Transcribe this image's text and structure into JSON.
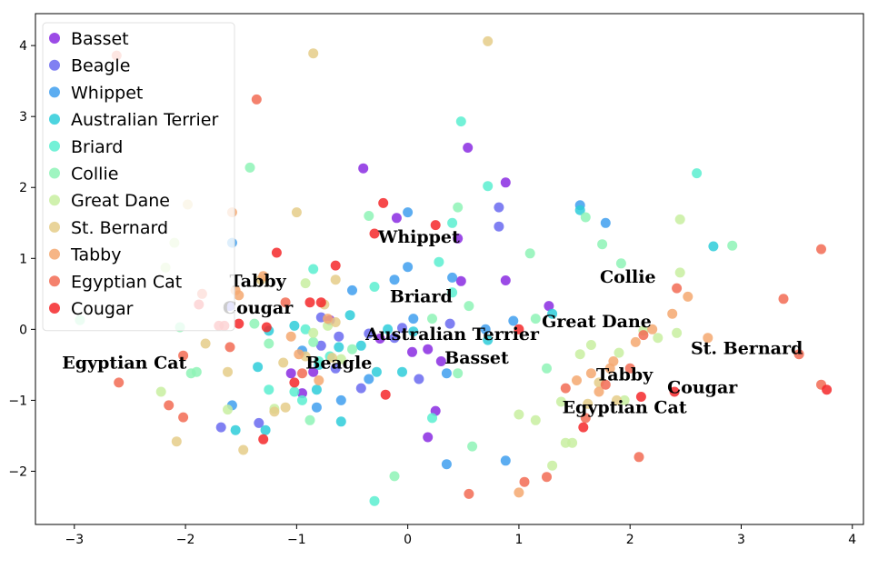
{
  "chart_data": {
    "type": "scatter",
    "title": "",
    "xlabel": "",
    "ylabel": "",
    "xlim": [
      -3.35,
      4.1
    ],
    "ylim": [
      -2.75,
      4.45
    ],
    "x_ticks": [
      -3,
      -2,
      -1,
      0,
      1,
      2,
      3,
      4
    ],
    "y_ticks": [
      -2,
      -1,
      0,
      1,
      2,
      3,
      4
    ],
    "x_tick_labels": [
      "−3",
      "−2",
      "−1",
      "0",
      "1",
      "2",
      "3",
      "4"
    ],
    "y_tick_labels": [
      "−2",
      "−1",
      "0",
      "1",
      "2",
      "3",
      "4"
    ],
    "grid": false,
    "legend_position": "top-left",
    "series": [
      {
        "name": "Basset",
        "color": "#8a2be2",
        "points": [
          [
            -0.4,
            2.27
          ],
          [
            0.54,
            2.56
          ],
          [
            0.88,
            2.07
          ],
          [
            -0.1,
            1.57
          ],
          [
            0.45,
            1.28
          ],
          [
            0.48,
            0.68
          ],
          [
            0.88,
            0.69
          ],
          [
            1.27,
            0.33
          ],
          [
            -0.7,
            0.13
          ],
          [
            -0.25,
            -0.13
          ],
          [
            0.04,
            -0.32
          ],
          [
            0.18,
            -0.28
          ],
          [
            0.3,
            -0.45
          ],
          [
            0.25,
            -1.15
          ],
          [
            0.18,
            -1.52
          ],
          [
            -0.95,
            -0.9
          ],
          [
            -0.85,
            -0.6
          ],
          [
            -1.05,
            -0.62
          ]
        ]
      },
      {
        "name": "Beagle",
        "color": "#6a6af0",
        "points": [
          [
            -0.78,
            -0.23
          ],
          [
            -0.62,
            -0.1
          ],
          [
            -0.35,
            -0.06
          ],
          [
            -0.12,
            -0.12
          ],
          [
            0.1,
            -0.7
          ],
          [
            -0.65,
            -0.55
          ],
          [
            -0.42,
            -0.83
          ],
          [
            -1.6,
            0.33
          ],
          [
            -1.68,
            -1.38
          ],
          [
            -1.34,
            -1.32
          ],
          [
            0.82,
            1.45
          ],
          [
            0.82,
            1.72
          ],
          [
            0.38,
            0.08
          ],
          [
            -0.05,
            0.02
          ],
          [
            -0.78,
            0.17
          ]
        ]
      },
      {
        "name": "Whippet",
        "color": "#3f9fee",
        "points": [
          [
            -0.5,
            0.55
          ],
          [
            -0.12,
            0.7
          ],
          [
            0.0,
            0.88
          ],
          [
            0.0,
            1.65
          ],
          [
            0.4,
            0.73
          ],
          [
            1.55,
            1.75
          ],
          [
            1.78,
            1.5
          ],
          [
            -1.58,
            1.22
          ],
          [
            -1.58,
            -1.07
          ],
          [
            -0.82,
            -1.1
          ],
          [
            -0.6,
            -1.0
          ],
          [
            -0.35,
            -0.7
          ],
          [
            0.35,
            -0.62
          ],
          [
            0.35,
            -1.9
          ],
          [
            0.88,
            -1.85
          ],
          [
            0.95,
            0.12
          ],
          [
            0.7,
            0.0
          ],
          [
            -0.95,
            -0.3
          ],
          [
            0.05,
            0.15
          ]
        ]
      },
      {
        "name": "Australian Terrier",
        "color": "#2ecdd9",
        "points": [
          [
            -1.55,
            -1.42
          ],
          [
            -1.35,
            -0.53
          ],
          [
            -1.25,
            -0.02
          ],
          [
            -1.02,
            0.05
          ],
          [
            -0.8,
            -0.5
          ],
          [
            -0.62,
            -0.25
          ],
          [
            -0.42,
            -0.23
          ],
          [
            -0.28,
            -0.6
          ],
          [
            -0.05,
            -0.6
          ],
          [
            0.05,
            -0.03
          ],
          [
            1.3,
            0.22
          ],
          [
            1.55,
            1.68
          ],
          [
            2.75,
            1.17
          ],
          [
            0.72,
            -0.15
          ],
          [
            -0.52,
            0.2
          ],
          [
            -0.18,
            0.0
          ],
          [
            -0.6,
            -1.3
          ],
          [
            -0.82,
            -0.85
          ],
          [
            -1.28,
            -1.42
          ]
        ]
      },
      {
        "name": "Briard",
        "color": "#5aefd0",
        "points": [
          [
            0.48,
            2.93
          ],
          [
            0.72,
            2.02
          ],
          [
            2.6,
            2.2
          ],
          [
            0.22,
            -1.25
          ],
          [
            0.4,
            0.52
          ],
          [
            0.4,
            1.5
          ],
          [
            0.28,
            0.95
          ],
          [
            -0.3,
            0.6
          ],
          [
            -0.8,
            -0.45
          ],
          [
            -0.7,
            -0.38
          ],
          [
            -0.95,
            -1.0
          ],
          [
            -1.02,
            -0.88
          ],
          [
            -0.92,
            0.0
          ],
          [
            -1.25,
            -0.85
          ],
          [
            -0.85,
            0.85
          ],
          [
            -0.3,
            -2.42
          ]
        ]
      },
      {
        "name": "Collie",
        "color": "#8ef3b6",
        "points": [
          [
            0.45,
            1.72
          ],
          [
            0.55,
            0.33
          ],
          [
            0.22,
            0.15
          ],
          [
            1.1,
            1.07
          ],
          [
            1.15,
            0.15
          ],
          [
            1.25,
            -0.55
          ],
          [
            1.6,
            1.58
          ],
          [
            1.75,
            1.2
          ],
          [
            1.92,
            0.93
          ],
          [
            2.92,
            1.18
          ],
          [
            -1.95,
            -0.62
          ],
          [
            -1.25,
            -0.2
          ],
          [
            -0.85,
            -0.18
          ],
          [
            -0.12,
            -2.07
          ],
          [
            0.58,
            -1.65
          ],
          [
            0.45,
            -0.62
          ],
          [
            -0.5,
            -0.28
          ],
          [
            -0.88,
            -1.28
          ],
          [
            -1.38,
            0.08
          ],
          [
            -2.05,
            0.03
          ],
          [
            -0.35,
            1.6
          ],
          [
            -1.42,
            2.28
          ],
          [
            -2.95,
            0.13
          ],
          [
            -1.9,
            -0.6
          ]
        ]
      },
      {
        "name": "Great Dane",
        "color": "#c8efa0",
        "points": [
          [
            -2.1,
            1.22
          ],
          [
            -2.18,
            0.87
          ],
          [
            -2.22,
            -0.88
          ],
          [
            -1.2,
            -1.12
          ],
          [
            -0.85,
            -0.05
          ],
          [
            1.0,
            -1.2
          ],
          [
            1.15,
            -1.28
          ],
          [
            1.38,
            -1.02
          ],
          [
            1.42,
            -1.6
          ],
          [
            1.55,
            -0.35
          ],
          [
            1.65,
            -0.22
          ],
          [
            1.9,
            -0.33
          ],
          [
            1.95,
            -1.0
          ],
          [
            2.12,
            -0.02
          ],
          [
            2.25,
            -0.12
          ],
          [
            2.42,
            -0.05
          ],
          [
            2.45,
            0.8
          ],
          [
            2.45,
            1.55
          ],
          [
            1.3,
            -1.92
          ],
          [
            1.48,
            -1.6
          ],
          [
            -1.62,
            -1.13
          ],
          [
            -0.92,
            0.65
          ],
          [
            -0.72,
            0.05
          ],
          [
            -0.6,
            -0.42
          ]
        ]
      },
      {
        "name": "St. Bernard",
        "color": "#e5cc88",
        "points": [
          [
            -0.85,
            3.89
          ],
          [
            0.72,
            4.06
          ],
          [
            -1.98,
            1.76
          ],
          [
            -1.0,
            1.65
          ],
          [
            -0.92,
            -0.38
          ],
          [
            -0.68,
            -0.4
          ],
          [
            -1.1,
            -1.1
          ],
          [
            -1.2,
            -1.16
          ],
          [
            -1.12,
            -0.47
          ],
          [
            -1.48,
            -1.7
          ],
          [
            -2.08,
            -1.58
          ],
          [
            -1.32,
            0.7
          ],
          [
            -0.65,
            0.7
          ],
          [
            -0.65,
            0.1
          ],
          [
            1.62,
            -1.05
          ],
          [
            1.72,
            -0.75
          ],
          [
            1.88,
            -1.0
          ],
          [
            -1.82,
            -0.2
          ],
          [
            -1.62,
            -0.6
          ],
          [
            -0.75,
            0.35
          ]
        ]
      },
      {
        "name": "Tabby",
        "color": "#f5a870",
        "points": [
          [
            -1.58,
            1.65
          ],
          [
            -1.55,
            0.55
          ],
          [
            -1.3,
            0.75
          ],
          [
            -1.05,
            -0.1
          ],
          [
            -0.8,
            -0.72
          ],
          [
            -0.72,
            0.15
          ],
          [
            1.0,
            -2.3
          ],
          [
            1.52,
            -0.72
          ],
          [
            1.65,
            -0.62
          ],
          [
            1.72,
            -0.88
          ],
          [
            1.85,
            -0.45
          ],
          [
            2.05,
            -0.18
          ],
          [
            2.2,
            0.0
          ],
          [
            2.38,
            0.22
          ],
          [
            2.52,
            0.46
          ],
          [
            2.7,
            -0.12
          ],
          [
            1.82,
            -0.55
          ],
          [
            -0.98,
            -0.35
          ],
          [
            -1.52,
            0.48
          ]
        ]
      },
      {
        "name": "Egyptian Cat",
        "color": "#f26b53",
        "points": [
          [
            -2.62,
            3.86
          ],
          [
            -1.36,
            3.24
          ],
          [
            -2.6,
            -0.75
          ],
          [
            -2.15,
            -1.07
          ],
          [
            -2.02,
            -0.37
          ],
          [
            -2.02,
            -1.24
          ],
          [
            -1.85,
            0.5
          ],
          [
            -1.6,
            -0.25
          ],
          [
            -1.1,
            0.38
          ],
          [
            -0.95,
            -0.62
          ],
          [
            0.55,
            -2.32
          ],
          [
            1.05,
            -2.15
          ],
          [
            1.25,
            -2.08
          ],
          [
            1.42,
            -0.83
          ],
          [
            1.6,
            -1.25
          ],
          [
            1.78,
            -0.78
          ],
          [
            2.0,
            -0.55
          ],
          [
            2.08,
            -1.8
          ],
          [
            2.12,
            -0.08
          ],
          [
            2.42,
            0.58
          ],
          [
            3.38,
            0.43
          ],
          [
            3.52,
            -0.35
          ],
          [
            3.72,
            1.13
          ],
          [
            3.72,
            -0.78
          ]
        ]
      },
      {
        "name": "Cougar",
        "color": "#f4282a",
        "points": [
          [
            -1.88,
            0.35
          ],
          [
            -1.65,
            0.05
          ],
          [
            -1.52,
            0.08
          ],
          [
            -1.3,
            -1.55
          ],
          [
            -1.27,
            0.03
          ],
          [
            -1.18,
            1.08
          ],
          [
            -1.02,
            -0.75
          ],
          [
            -0.88,
            0.38
          ],
          [
            -0.78,
            0.38
          ],
          [
            -0.65,
            0.9
          ],
          [
            -0.3,
            1.35
          ],
          [
            -0.22,
            1.78
          ],
          [
            -0.2,
            -0.92
          ],
          [
            0.25,
            1.47
          ],
          [
            1.0,
            0.0
          ],
          [
            1.58,
            -1.38
          ],
          [
            2.1,
            -0.95
          ],
          [
            2.4,
            -0.88
          ],
          [
            3.77,
            -0.85
          ],
          [
            -1.7,
            0.05
          ]
        ]
      }
    ],
    "annotations": [
      {
        "text": "Whippet",
        "x": 0.1,
        "y": 1.22
      },
      {
        "text": "Tabby",
        "x": -1.35,
        "y": 0.6
      },
      {
        "text": "Cougar",
        "x": -1.35,
        "y": 0.22
      },
      {
        "text": "Briard",
        "x": 0.12,
        "y": 0.38
      },
      {
        "text": "Collie",
        "x": 1.98,
        "y": 0.66
      },
      {
        "text": "Great Dane",
        "x": 1.7,
        "y": 0.03
      },
      {
        "text": "Australian Terrier",
        "x": 0.4,
        "y": -0.15
      },
      {
        "text": "Basset",
        "x": 0.62,
        "y": -0.48
      },
      {
        "text": "St. Bernard",
        "x": 3.05,
        "y": -0.35
      },
      {
        "text": "Egyptian Cat",
        "x": -2.55,
        "y": -0.55
      },
      {
        "text": "Beagle",
        "x": -0.62,
        "y": -0.55
      },
      {
        "text": "Tabby",
        "x": 1.95,
        "y": -0.72
      },
      {
        "text": "Cougar",
        "x": 2.65,
        "y": -0.9
      },
      {
        "text": "Egyptian Cat",
        "x": 1.95,
        "y": -1.18
      }
    ]
  }
}
